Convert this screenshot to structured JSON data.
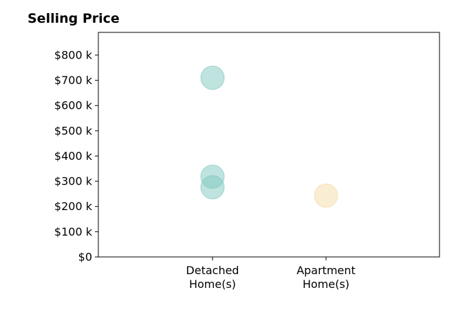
{
  "chart_data": {
    "type": "scatter",
    "title": "Selling Price",
    "xlabel": "",
    "ylabel": "",
    "categories": [
      "Detached\nHome(s)",
      "Apartment\nHome(s)"
    ],
    "yticks": [
      0,
      100,
      200,
      300,
      400,
      500,
      600,
      700,
      800
    ],
    "ytick_labels": [
      "$0",
      "$100 k",
      "$200 k",
      "$300 k",
      "$400 k",
      "$500 k",
      "$600 k",
      "$700 k",
      "$800 k"
    ],
    "ylim": [
      0,
      890
    ],
    "y_unit": "thousand dollars",
    "grid": false,
    "points": [
      {
        "category": "Detached\nHome(s)",
        "y": 710,
        "color": "#7fc8bf"
      },
      {
        "category": "Detached\nHome(s)",
        "y": 318,
        "color": "#7fc8bf"
      },
      {
        "category": "Detached\nHome(s)",
        "y": 276,
        "color": "#7fc8bf"
      },
      {
        "category": "Apartment\nHome(s)",
        "y": 243,
        "color": "#f3dca8"
      }
    ]
  }
}
